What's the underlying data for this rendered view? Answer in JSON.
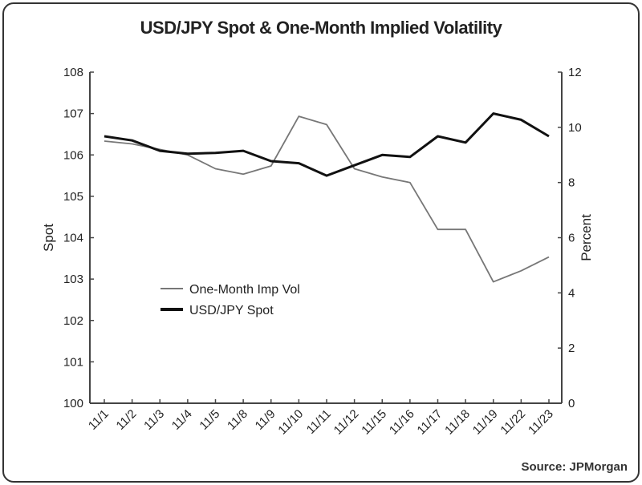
{
  "title": "USD/JPY Spot & One-Month Implied Volatility",
  "source": "Source: JPMorgan",
  "chart_data": {
    "type": "line",
    "title": "USD/JPY Spot & One-Month Implied Volatility",
    "categories": [
      "11/1",
      "11/2",
      "11/3",
      "11/4",
      "11/5",
      "11/8",
      "11/9",
      "11/10",
      "11/11",
      "11/12",
      "11/15",
      "11/16",
      "11/17",
      "11/18",
      "11/19",
      "11/22",
      "11/23"
    ],
    "ylabel_left": "Spot",
    "ylabel_right": "Percent",
    "ylim_left": [
      100,
      108
    ],
    "ylim_right": [
      0,
      12
    ],
    "yticks_left": [
      "100",
      "101",
      "102",
      "103",
      "104",
      "105",
      "106",
      "107",
      "108"
    ],
    "yticks_right": [
      "0",
      "2",
      "4",
      "6",
      "8",
      "10",
      "12"
    ],
    "grid": false,
    "legend_position": "center-left",
    "series": [
      {
        "name": "One-Month Imp Vol",
        "axis": "right",
        "color": "#777777",
        "values": [
          9.5,
          9.4,
          9.2,
          9.0,
          8.5,
          8.3,
          8.6,
          10.4,
          10.1,
          8.5,
          8.2,
          8.0,
          6.3,
          6.3,
          4.4,
          4.8,
          5.3
        ]
      },
      {
        "name": "USD/JPY Spot",
        "axis": "left",
        "color": "#111111",
        "values": [
          106.45,
          106.35,
          106.1,
          106.03,
          106.05,
          106.1,
          105.85,
          105.8,
          105.5,
          105.75,
          106.0,
          105.95,
          106.45,
          106.3,
          107.0,
          106.85,
          106.45
        ]
      }
    ]
  }
}
